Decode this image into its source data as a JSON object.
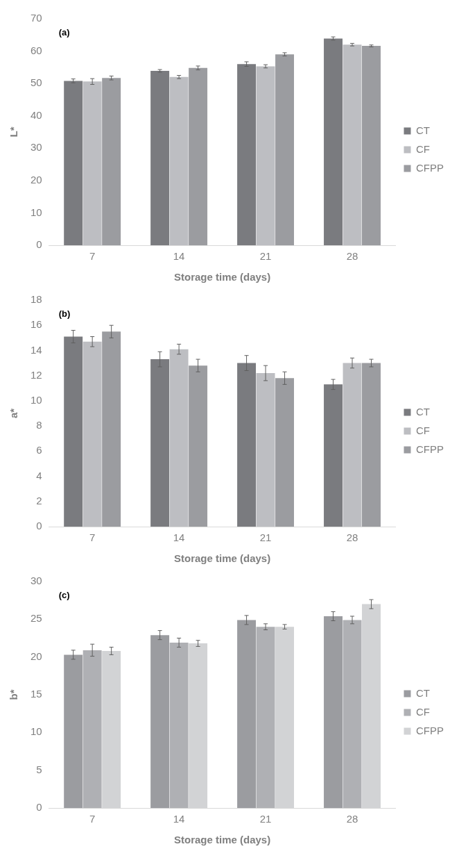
{
  "chart_data": [
    {
      "type": "bar",
      "annotations": [
        "(a)"
      ],
      "xlabel": "Storage time (days)",
      "ylabel": "L*",
      "categories": [
        "7",
        "14",
        "21",
        "28"
      ],
      "ylim": [
        0,
        70
      ],
      "yticks": [
        0,
        10,
        20,
        30,
        40,
        50,
        60,
        70
      ],
      "grid": false,
      "legend": "right",
      "series": [
        {
          "name": "CT",
          "color": "#7a7b7f",
          "values": [
            50.8,
            53.9,
            56.0,
            63.9
          ],
          "errors": [
            0.6,
            0.4,
            0.7,
            0.5
          ]
        },
        {
          "name": "CF",
          "color": "#bdbec2",
          "values": [
            50.6,
            52.0,
            55.3,
            62.0
          ],
          "errors": [
            0.9,
            0.5,
            0.5,
            0.4
          ]
        },
        {
          "name": "CFPP",
          "color": "#9b9ca0",
          "values": [
            51.7,
            54.8,
            59.0,
            61.6
          ],
          "errors": [
            0.6,
            0.6,
            0.5,
            0.3
          ]
        }
      ]
    },
    {
      "type": "bar",
      "annotations": [
        "(b)"
      ],
      "xlabel": "Storage time (days)",
      "ylabel": "a*",
      "categories": [
        "7",
        "14",
        "21",
        "28"
      ],
      "ylim": [
        0,
        18
      ],
      "yticks": [
        0,
        2,
        4,
        6,
        8,
        10,
        12,
        14,
        16,
        18
      ],
      "grid": false,
      "legend": "right",
      "series": [
        {
          "name": "CT",
          "color": "#7a7b7f",
          "values": [
            15.1,
            13.3,
            13.0,
            11.3
          ],
          "errors": [
            0.5,
            0.6,
            0.6,
            0.4
          ]
        },
        {
          "name": "CF",
          "color": "#bdbec2",
          "values": [
            14.7,
            14.1,
            12.2,
            13.0
          ],
          "errors": [
            0.4,
            0.4,
            0.6,
            0.4
          ]
        },
        {
          "name": "CFPP",
          "color": "#9b9ca0",
          "values": [
            15.5,
            12.8,
            11.8,
            13.0
          ],
          "errors": [
            0.5,
            0.5,
            0.5,
            0.3
          ]
        }
      ]
    },
    {
      "type": "bar",
      "annotations": [
        "(c)"
      ],
      "xlabel": "Storage time (days)",
      "ylabel": "b*",
      "categories": [
        "7",
        "14",
        "21",
        "28"
      ],
      "ylim": [
        0,
        30
      ],
      "yticks": [
        0,
        5,
        10,
        15,
        20,
        25,
        30
      ],
      "grid": false,
      "legend": "right",
      "series": [
        {
          "name": "CT",
          "color": "#9b9ca0",
          "values": [
            20.3,
            22.9,
            24.9,
            25.4
          ],
          "errors": [
            0.6,
            0.6,
            0.6,
            0.6
          ]
        },
        {
          "name": "CF",
          "color": "#afb0b4",
          "values": [
            20.9,
            21.9,
            24.0,
            24.9
          ],
          "errors": [
            0.8,
            0.6,
            0.4,
            0.5
          ]
        },
        {
          "name": "CFPP",
          "color": "#d2d3d5",
          "values": [
            20.8,
            21.8,
            24.0,
            27.0
          ],
          "errors": [
            0.5,
            0.4,
            0.3,
            0.6
          ]
        }
      ]
    }
  ]
}
